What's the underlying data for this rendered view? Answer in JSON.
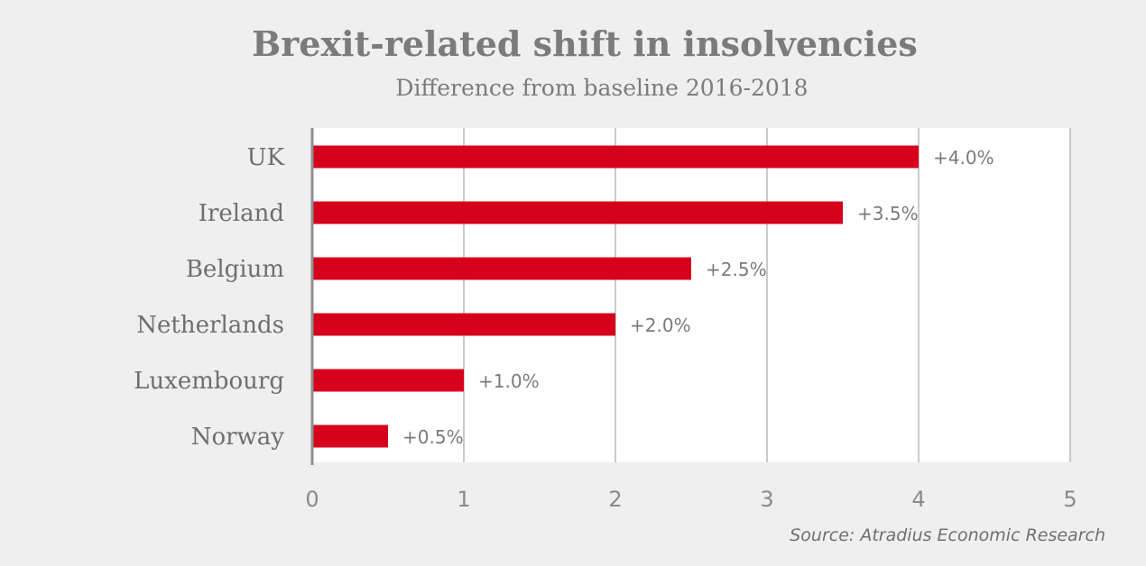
{
  "chart_data": {
    "type": "bar",
    "orientation": "horizontal",
    "title": "Brexit-related shift in insolvencies",
    "subtitle": "Difference from baseline 2016-2018",
    "categories": [
      "UK",
      "Ireland",
      "Belgium",
      "Netherlands",
      "Luxembourg",
      "Norway"
    ],
    "values": [
      4.0,
      3.5,
      2.5,
      2.0,
      1.0,
      0.5
    ],
    "value_labels": [
      "+4.0%",
      "+3.5%",
      "+2.5%",
      "+2.0%",
      "+1.0%",
      "+0.5%"
    ],
    "xlim": [
      0,
      5
    ],
    "x_ticks": [
      0,
      1,
      2,
      3,
      4,
      5
    ],
    "x_tick_labels": [
      "0",
      "1",
      "2",
      "3",
      "4",
      "5"
    ],
    "xlabel": "",
    "ylabel": "",
    "grid": true,
    "source": "Source: Atradius Economic Research",
    "colors": {
      "bar": "#d6001c",
      "background": "#efefef",
      "plot_background": "#ffffff",
      "gridline": "#a8a8a8",
      "axis": "#8f8f8f"
    }
  }
}
